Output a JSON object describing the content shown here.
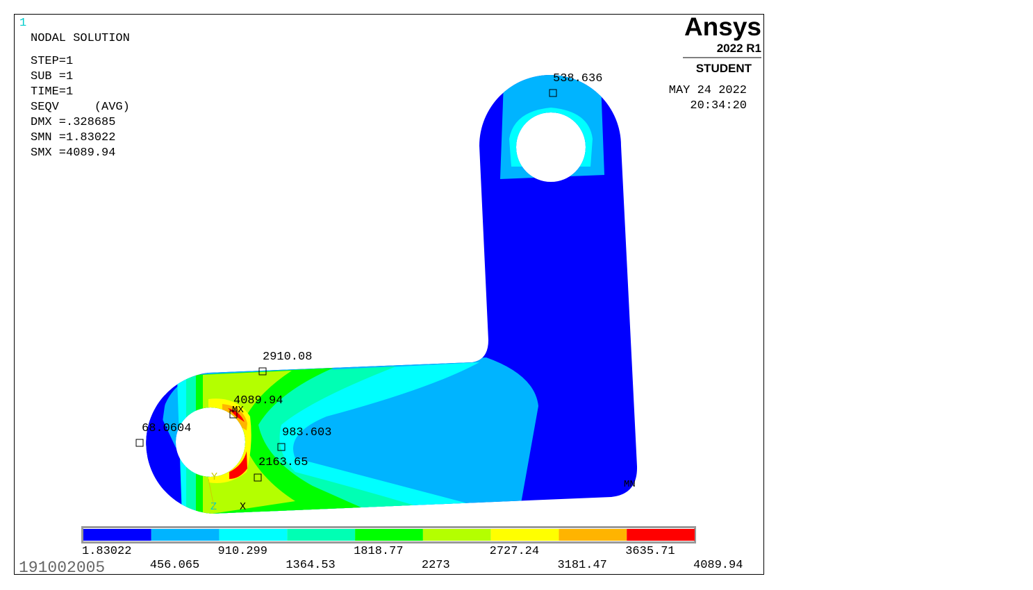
{
  "window_number": "1",
  "header": {
    "title": "NODAL SOLUTION",
    "lines": [
      "STEP=1",
      "SUB =1",
      "TIME=1",
      "SEQV     (AVG)",
      "DMX =.328685",
      "SMN =1.83022",
      "SMX =4089.94"
    ]
  },
  "brand": {
    "logo": "Ansys",
    "version": "2022 R1",
    "edition": "STUDENT"
  },
  "date": "MAY 24 2022",
  "time": "20:34:20",
  "annotations": [
    "538.636",
    "2910.08",
    "4089.94",
    "MX",
    "68.0604",
    "983.603",
    "2163.65",
    "MN"
  ],
  "triad": [
    "Y",
    "Z",
    "X"
  ],
  "legend": {
    "colors": [
      "#0000ff",
      "#00b4ff",
      "#00ffff",
      "#00ffb4",
      "#00ff00",
      "#b4ff00",
      "#ffff00",
      "#ffb400",
      "#ff0000"
    ],
    "labels": [
      "1.83022",
      "456.065",
      "910.299",
      "1364.53",
      "1818.77",
      "2273",
      "2727.24",
      "3181.47",
      "3635.71",
      "4089.94"
    ]
  },
  "footer_id": "191002005"
}
